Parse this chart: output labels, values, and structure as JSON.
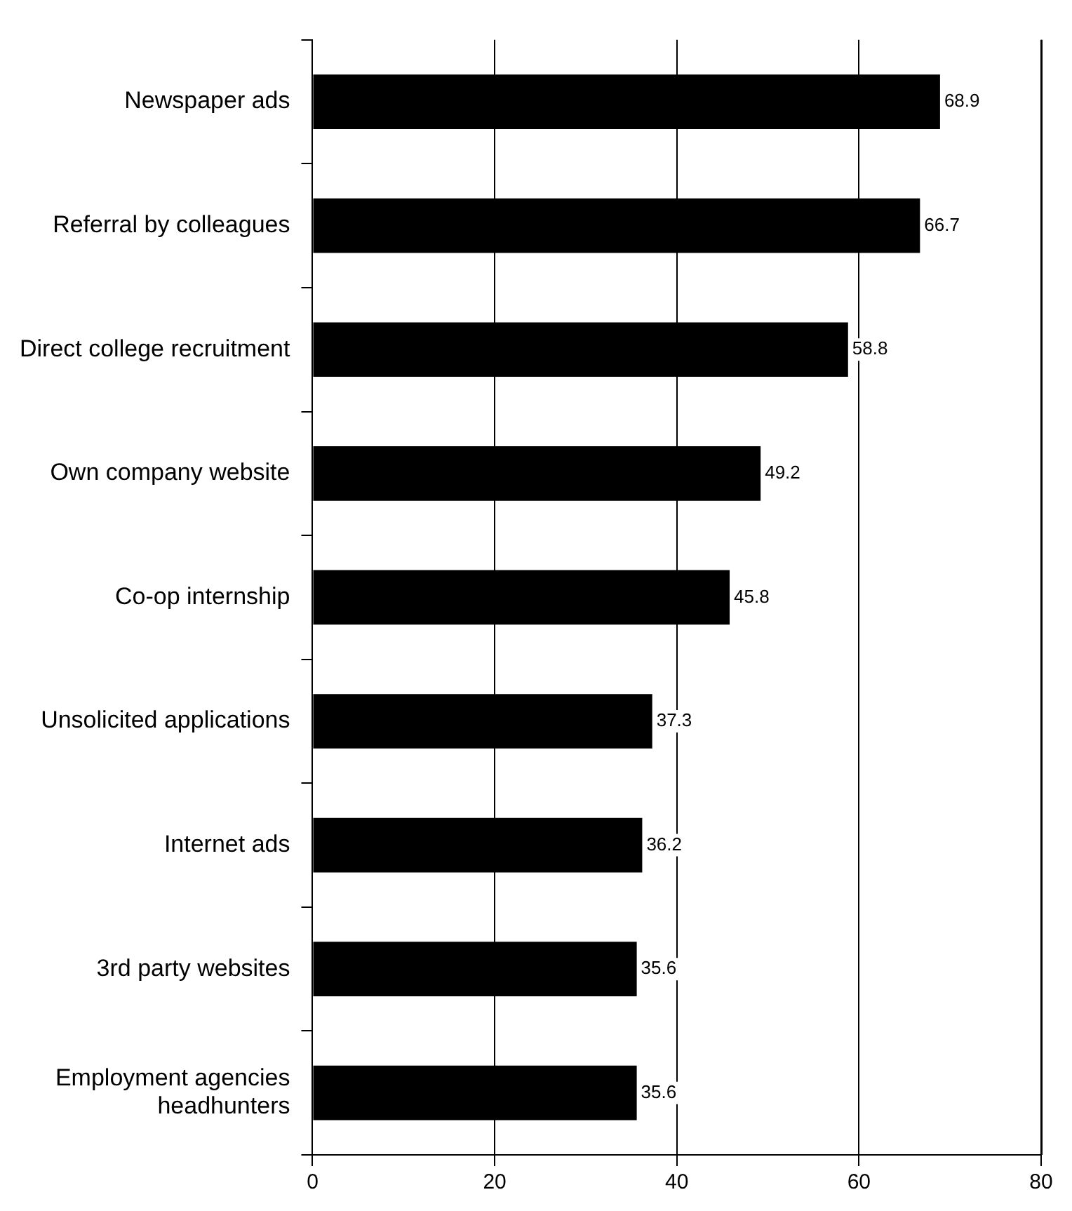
{
  "chart_data": {
    "type": "bar",
    "orientation": "horizontal",
    "categories": [
      "Newspaper ads",
      "Referral by colleagues",
      "Direct college recruitment",
      "Own company website",
      "Co-op internship",
      "Unsolicited applications",
      "Internet ads",
      "3rd party websites",
      "Employment agencies headhunters"
    ],
    "values": [
      68.9,
      66.7,
      58.8,
      49.2,
      45.8,
      37.3,
      36.2,
      35.6,
      35.6
    ],
    "color": "#000000",
    "xlim": [
      0,
      80
    ],
    "xticks": [
      0,
      20,
      40,
      60,
      80
    ],
    "grid": "x",
    "legend": false,
    "data_labels": true
  }
}
